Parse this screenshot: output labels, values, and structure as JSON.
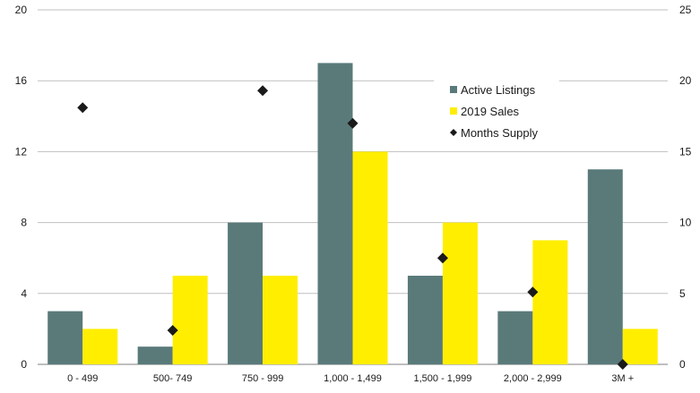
{
  "chart_data": {
    "type": "bar",
    "categories": [
      "0 - 499",
      "500- 749",
      "750 - 999",
      "1,000 - 1,499",
      "1,500 - 1,999",
      "2,000 - 2,999",
      "3M +"
    ],
    "series": [
      {
        "name": "Active Listings",
        "kind": "bar",
        "axis": "left",
        "color": "#5a7a7a",
        "values": [
          3,
          1,
          8,
          17,
          5,
          3,
          11
        ]
      },
      {
        "name": "2019 Sales",
        "kind": "bar",
        "axis": "left",
        "color": "#ffee00",
        "values": [
          2,
          5,
          5,
          12,
          8,
          7,
          2
        ]
      },
      {
        "name": "Months Supply",
        "kind": "scatter",
        "marker": "diamond",
        "axis": "right",
        "color": "#1a1a1a",
        "values": [
          18.1,
          2.4,
          19.3,
          17.0,
          7.5,
          5.1,
          0
        ]
      }
    ],
    "y_left": {
      "min": 0,
      "max": 20,
      "ticks": [
        "0",
        "4",
        "8",
        "12",
        "16",
        "20"
      ]
    },
    "y_right": {
      "min": 0,
      "max": 25,
      "ticks": [
        "0",
        "5",
        "10",
        "15",
        "20",
        "25"
      ]
    },
    "grid": true,
    "legend": "upper-right inside plot"
  }
}
